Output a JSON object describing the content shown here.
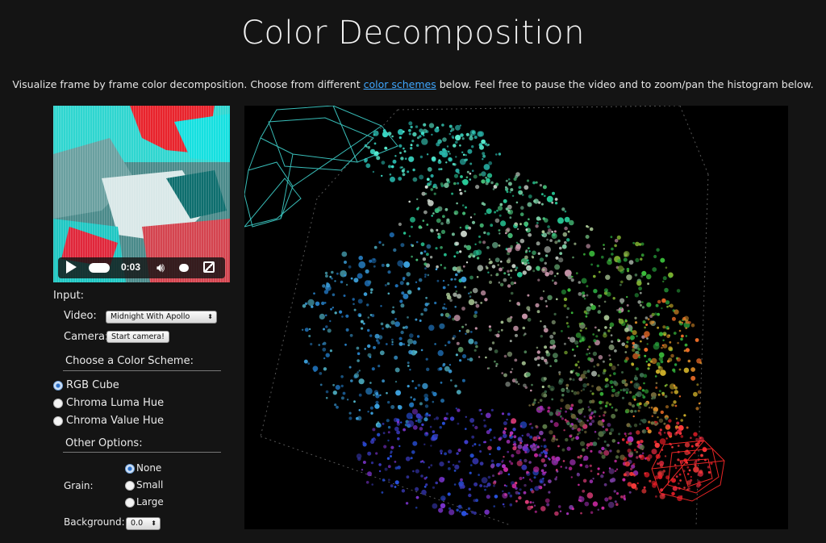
{
  "page": {
    "title": "Color Decomposition",
    "intro_before": "Visualize frame by frame color decomposition. Choose from different ",
    "intro_link": "color schemes",
    "intro_after": " below. Feel free to pause the video and to zoom/pan the histogram below."
  },
  "video": {
    "time": "0:03",
    "icons": [
      "play-icon",
      "scrub-knob",
      "volume-icon",
      "volume-knob",
      "fullscreen-icon"
    ]
  },
  "input": {
    "heading": "Input:",
    "video_label": "Video:",
    "video_selected": "Midnight With Apollo",
    "camera_label": "Camera:",
    "camera_button": "Start camera!"
  },
  "scheme": {
    "heading": "Choose a Color Scheme:",
    "options": [
      {
        "label": "RGB Cube",
        "checked": true
      },
      {
        "label": "Chroma Luma Hue",
        "checked": false
      },
      {
        "label": "Chroma Value Hue",
        "checked": false
      }
    ]
  },
  "options": {
    "heading": "Other Options:",
    "grain_label": "Grain:",
    "grain": [
      {
        "label": "None",
        "checked": true
      },
      {
        "label": "Small",
        "checked": false
      },
      {
        "label": "Large",
        "checked": false
      }
    ],
    "background_label": "Background:",
    "background_value": "0.0"
  }
}
